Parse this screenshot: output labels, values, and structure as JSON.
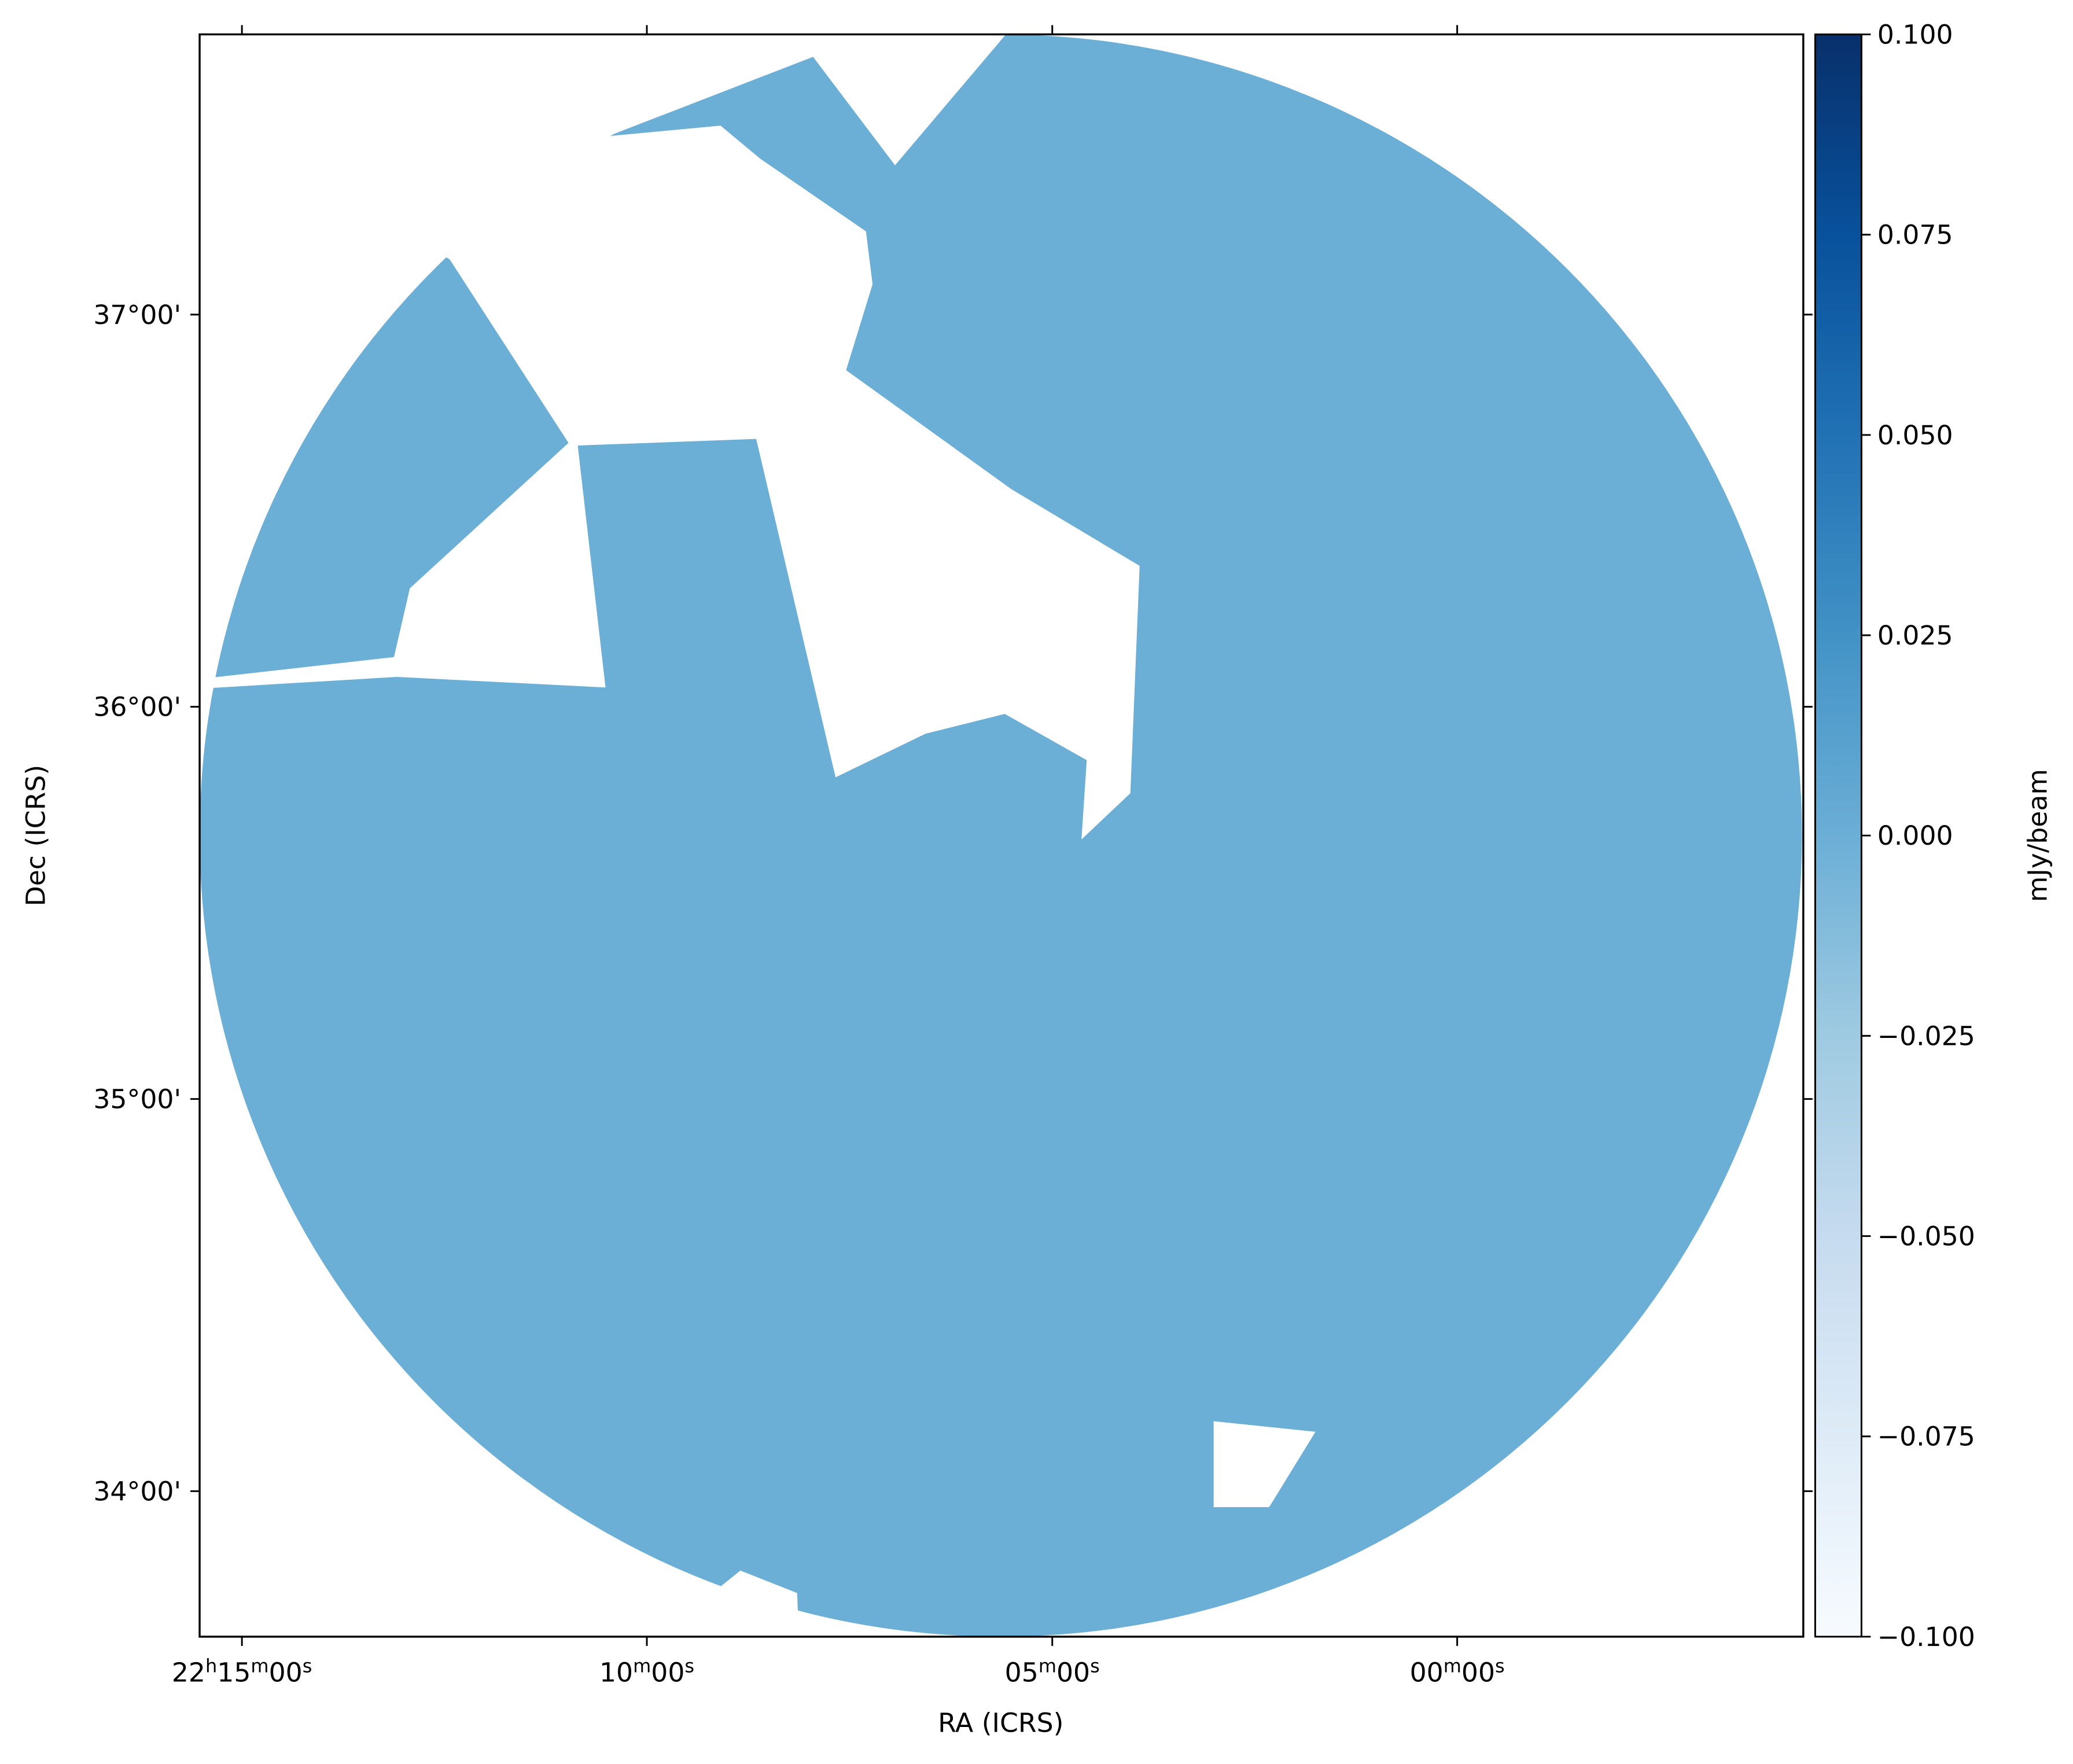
{
  "chart_data": {
    "type": "image",
    "xlabel": "RA (ICRS)",
    "ylabel": "Dec (ICRS)",
    "color": "#6baed6",
    "xlim": [
      22.2587,
      21.9288
    ],
    "xticks": [
      {
        "value": 22.25,
        "label": "22h15m00s"
      },
      {
        "value": 22.1667,
        "label": "10m00s"
      },
      {
        "value": 22.0833,
        "label": "05m00s"
      },
      {
        "value": 22.0,
        "label": "00m00s"
      }
    ],
    "ylim": [
      33.629,
      37.7145
    ],
    "yticks": [
      {
        "value": 34,
        "label": "34°00'"
      },
      {
        "value": 35,
        "label": "35°00'"
      },
      {
        "value": 36,
        "label": "36°00'"
      },
      {
        "value": 37,
        "label": "37°00'"
      }
    ],
    "colorbar": {
      "label": "mJy/beam",
      "lim": [
        -0.1,
        0.1
      ],
      "ticks": [
        {
          "value": 0.1,
          "label": "0.100"
        },
        {
          "value": 0.075,
          "label": "0.075"
        },
        {
          "value": 0.05,
          "label": "0.050"
        },
        {
          "value": 0.025,
          "label": "0.025"
        },
        {
          "value": 0,
          "label": "0.000"
        },
        {
          "value": -0.025,
          "label": "−0.025"
        },
        {
          "value": -0.05,
          "label": "−0.050"
        },
        {
          "value": -0.075,
          "label": "−0.075"
        },
        {
          "value": -0.1,
          "label": "−0.100"
        }
      ]
    }
  }
}
